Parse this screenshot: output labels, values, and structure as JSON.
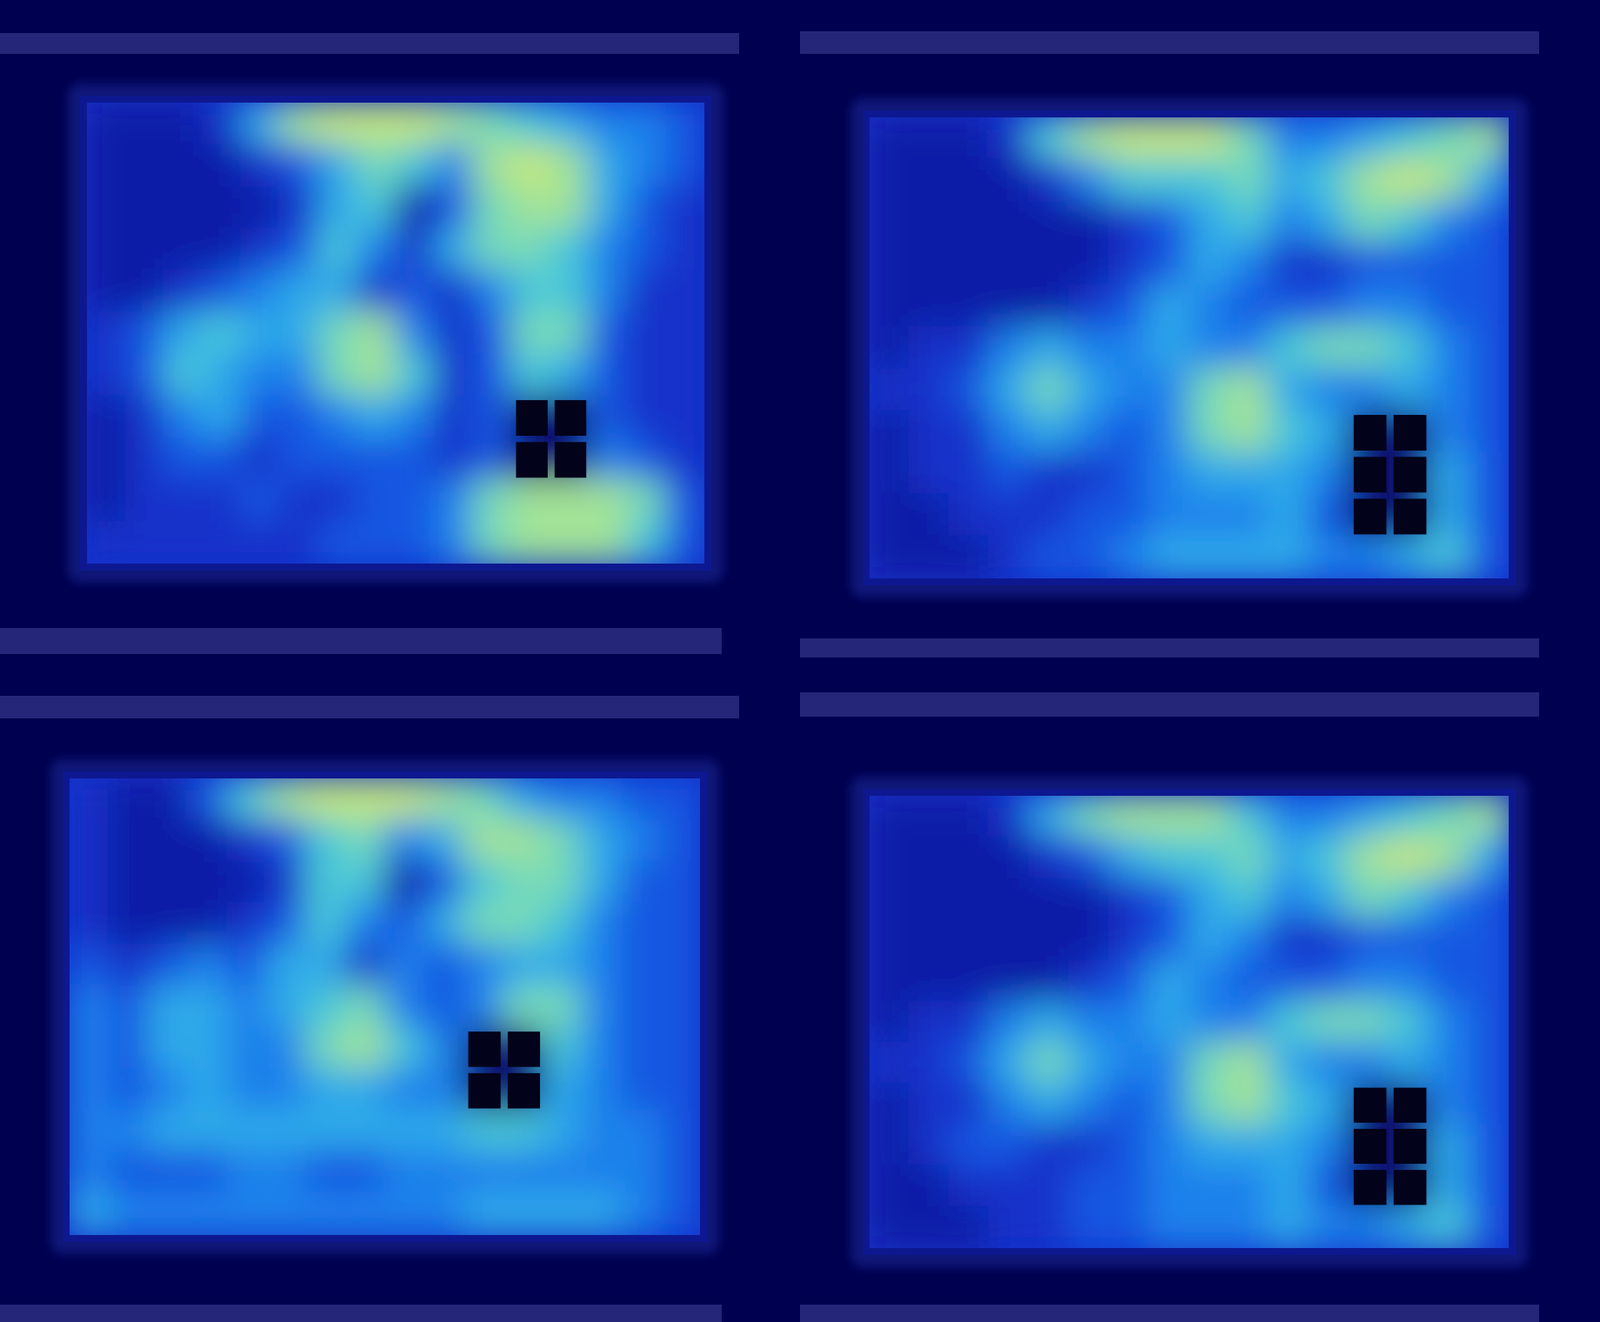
{
  "chart_data": [
    {
      "type": "heatmap",
      "tick_labels": false,
      "cells": [
        [
          1,
          1,
          1,
          2,
          5,
          8,
          9,
          9,
          9,
          8,
          7,
          6,
          5,
          4,
          4,
          3
        ],
        [
          1,
          1,
          1,
          1,
          2,
          3,
          5,
          7,
          6,
          4,
          8,
          9,
          8,
          5,
          4,
          3
        ],
        [
          1,
          1,
          1,
          1,
          1,
          2,
          5,
          6,
          1,
          3,
          7,
          8,
          8,
          5,
          3,
          2
        ],
        [
          1,
          1,
          1,
          1,
          2,
          3,
          6,
          4,
          2,
          5,
          7,
          7,
          6,
          4,
          3,
          2
        ],
        [
          1,
          1,
          2,
          3,
          4,
          5,
          5,
          2,
          3,
          2,
          4,
          6,
          6,
          4,
          2,
          2
        ],
        [
          2,
          3,
          5,
          6,
          5,
          5,
          7,
          8,
          4,
          2,
          3,
          7,
          7,
          3,
          2,
          2
        ],
        [
          2,
          3,
          6,
          5,
          4,
          4,
          7,
          8,
          6,
          2,
          3,
          6,
          5,
          3,
          2,
          2
        ],
        [
          1,
          2,
          4,
          5,
          3,
          3,
          4,
          5,
          4,
          2,
          3,
          null,
          null,
          3,
          2,
          2
        ],
        [
          1,
          2,
          3,
          3,
          2,
          3,
          3,
          3,
          3,
          2,
          3,
          null,
          null,
          4,
          3,
          2
        ],
        [
          1,
          2,
          2,
          2,
          3,
          2,
          2,
          3,
          3,
          4,
          7,
          8,
          8,
          8,
          7,
          3
        ],
        [
          2,
          2,
          2,
          2,
          2,
          2,
          3,
          3,
          3,
          4,
          7,
          8,
          8,
          8,
          6,
          3
        ]
      ]
    },
    {
      "type": "heatmap",
      "tick_labels": false,
      "cells": [
        [
          1,
          1,
          1,
          2,
          6,
          8,
          9,
          9,
          9,
          7,
          4,
          4,
          5,
          6,
          7,
          8
        ],
        [
          1,
          1,
          1,
          1,
          2,
          4,
          6,
          6,
          6,
          7,
          5,
          6,
          8,
          9,
          8,
          5
        ],
        [
          1,
          1,
          1,
          1,
          1,
          1,
          2,
          3,
          5,
          6,
          4,
          5,
          7,
          6,
          4,
          3
        ],
        [
          1,
          1,
          1,
          1,
          1,
          1,
          2,
          3,
          5,
          4,
          2,
          2,
          3,
          3,
          3,
          3
        ],
        [
          1,
          1,
          1,
          1,
          1,
          2,
          3,
          5,
          4,
          3,
          3,
          3,
          4,
          4,
          3,
          3
        ],
        [
          1,
          2,
          2,
          4,
          5,
          4,
          4,
          5,
          4,
          4,
          6,
          7,
          7,
          6,
          4,
          3
        ],
        [
          2,
          2,
          3,
          5,
          7,
          5,
          4,
          4,
          7,
          8,
          5,
          4,
          4,
          5,
          4,
          3
        ],
        [
          1,
          2,
          2,
          4,
          5,
          4,
          3,
          4,
          7,
          8,
          6,
          5,
          null,
          null,
          4,
          3
        ],
        [
          1,
          2,
          2,
          3,
          2,
          2,
          3,
          4,
          5,
          5,
          5,
          4,
          null,
          null,
          5,
          3
        ],
        [
          1,
          1,
          2,
          2,
          2,
          3,
          3,
          4,
          4,
          4,
          5,
          3,
          null,
          null,
          5,
          3
        ],
        [
          1,
          1,
          1,
          2,
          3,
          3,
          4,
          5,
          5,
          5,
          5,
          4,
          4,
          5,
          6,
          3
        ]
      ]
    },
    {
      "type": "heatmap",
      "tick_labels": false,
      "cells": [
        [
          2,
          1,
          1,
          3,
          6,
          8,
          9,
          9,
          9,
          8,
          7,
          5,
          4,
          4,
          3,
          3
        ],
        [
          2,
          1,
          1,
          1,
          2,
          3,
          6,
          7,
          4,
          5,
          8,
          8,
          7,
          5,
          4,
          3
        ],
        [
          2,
          1,
          1,
          1,
          1,
          2,
          6,
          6,
          1,
          3,
          6,
          7,
          7,
          5,
          3,
          3
        ],
        [
          2,
          1,
          1,
          1,
          2,
          3,
          6,
          4,
          3,
          5,
          7,
          7,
          6,
          4,
          3,
          3
        ],
        [
          3,
          2,
          3,
          4,
          3,
          5,
          5,
          2,
          4,
          3,
          4,
          5,
          5,
          4,
          3,
          3
        ],
        [
          4,
          3,
          5,
          5,
          4,
          5,
          6,
          7,
          4,
          3,
          4,
          7,
          7,
          4,
          3,
          3
        ],
        [
          4,
          3,
          5,
          5,
          4,
          4,
          7,
          8,
          6,
          4,
          null,
          null,
          6,
          4,
          3,
          3
        ],
        [
          4,
          3,
          4,
          5,
          4,
          4,
          5,
          5,
          4,
          4,
          null,
          null,
          5,
          4,
          3,
          3
        ],
        [
          4,
          4,
          5,
          5,
          5,
          5,
          5,
          5,
          5,
          5,
          6,
          6,
          5,
          4,
          4,
          3
        ],
        [
          4,
          3,
          3,
          3,
          4,
          4,
          3,
          3,
          4,
          4,
          4,
          4,
          4,
          4,
          4,
          3
        ],
        [
          5,
          4,
          4,
          4,
          4,
          4,
          4,
          4,
          4,
          4,
          5,
          5,
          5,
          5,
          4,
          3
        ]
      ]
    },
    {
      "type": "heatmap",
      "tick_labels": false,
      "cells": [
        [
          1,
          1,
          1,
          2,
          5,
          7,
          8,
          8,
          8,
          6,
          4,
          4,
          5,
          6,
          7,
          8
        ],
        [
          1,
          1,
          1,
          1,
          2,
          3,
          5,
          6,
          6,
          7,
          5,
          6,
          8,
          9,
          8,
          5
        ],
        [
          1,
          1,
          1,
          1,
          1,
          1,
          2,
          3,
          5,
          6,
          4,
          5,
          7,
          6,
          4,
          3
        ],
        [
          1,
          1,
          1,
          1,
          1,
          1,
          2,
          3,
          5,
          4,
          2,
          2,
          3,
          3,
          3,
          3
        ],
        [
          1,
          1,
          1,
          1,
          1,
          2,
          3,
          5,
          4,
          3,
          3,
          3,
          4,
          4,
          3,
          3
        ],
        [
          1,
          2,
          2,
          4,
          5,
          4,
          4,
          5,
          4,
          4,
          6,
          7,
          7,
          6,
          4,
          3
        ],
        [
          2,
          2,
          3,
          5,
          7,
          5,
          4,
          4,
          7,
          8,
          5,
          4,
          4,
          5,
          4,
          3
        ],
        [
          1,
          2,
          2,
          4,
          5,
          4,
          3,
          4,
          7,
          8,
          6,
          5,
          null,
          null,
          4,
          3
        ],
        [
          1,
          2,
          3,
          3,
          2,
          2,
          3,
          4,
          5,
          5,
          5,
          4,
          null,
          null,
          5,
          3
        ],
        [
          1,
          1,
          2,
          2,
          2,
          3,
          3,
          4,
          4,
          4,
          5,
          3,
          null,
          null,
          5,
          3
        ],
        [
          1,
          1,
          1,
          2,
          2,
          3,
          3,
          4,
          4,
          4,
          5,
          4,
          4,
          5,
          6,
          3
        ]
      ]
    }
  ]
}
